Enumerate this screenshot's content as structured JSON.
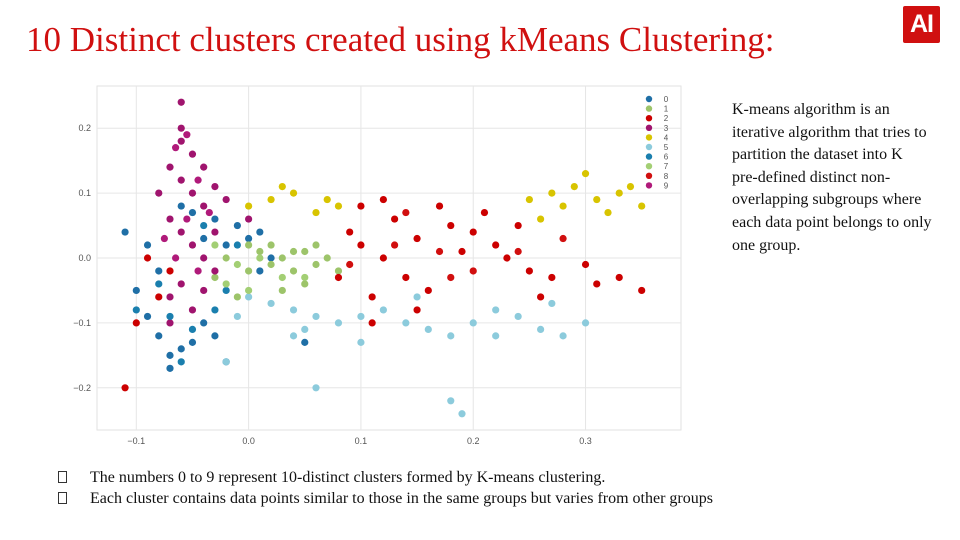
{
  "slide": {
    "title": "10 Distinct clusters created using kMeans Clustering:",
    "logo_text": "AI",
    "logo_color": "#d01010",
    "side_text": "K-means algorithm is an iterative algorithm that tries to partition the dataset into K pre-defined distinct non-overlapping subgroups where each data point belongs to only one group.",
    "bullets": [
      "The numbers 0 to 9 represent 10-distinct clusters formed by K-means clustering.",
      "Each cluster contains data points similar to those in the same groups but varies from other groups"
    ]
  },
  "chart_data": {
    "type": "scatter",
    "xlim": [
      -0.135,
      0.385
    ],
    "ylim": [
      -0.265,
      0.265
    ],
    "x_ticks": [
      -0.1,
      0.0,
      0.1,
      0.2,
      0.3
    ],
    "x_tick_labels": [
      "−0.1",
      "0.0",
      "0.1",
      "0.2",
      "0.3"
    ],
    "y_ticks": [
      -0.2,
      -0.1,
      0.0,
      0.1,
      0.2
    ],
    "y_tick_labels": [
      "−0.2",
      "−0.1",
      "0.0",
      "0.1",
      "0.2"
    ],
    "grid": true,
    "legend_position": "top-right",
    "series": [
      {
        "name": "0",
        "color": "#1f6fa6",
        "points": [
          [
            -0.1,
            -0.05
          ],
          [
            -0.09,
            -0.09
          ],
          [
            -0.08,
            -0.12
          ],
          [
            -0.07,
            -0.15
          ],
          [
            -0.06,
            -0.14
          ],
          [
            -0.05,
            -0.13
          ],
          [
            -0.04,
            -0.1
          ],
          [
            -0.03,
            -0.12
          ],
          [
            -0.09,
            0.02
          ],
          [
            -0.08,
            -0.02
          ],
          [
            -0.05,
            0.07
          ],
          [
            -0.03,
            0.06
          ],
          [
            -0.02,
            0.02
          ],
          [
            -0.01,
            0.05
          ],
          [
            0.0,
            0.03
          ],
          [
            0.01,
            0.04
          ],
          [
            -0.11,
            0.04
          ],
          [
            -0.07,
            -0.17
          ],
          [
            -0.02,
            -0.16
          ],
          [
            0.01,
            -0.02
          ],
          [
            0.05,
            -0.13
          ],
          [
            -0.06,
            0.08
          ],
          [
            -0.04,
            0.03
          ],
          [
            0.02,
            0.0
          ]
        ]
      },
      {
        "name": "1",
        "color": "#9dc46a",
        "points": [
          [
            -0.02,
            0.0
          ],
          [
            0.0,
            -0.02
          ],
          [
            0.01,
            0.01
          ],
          [
            0.02,
            -0.01
          ],
          [
            0.03,
            0.0
          ],
          [
            0.04,
            -0.02
          ],
          [
            0.05,
            0.01
          ],
          [
            0.06,
            -0.01
          ],
          [
            -0.03,
            -0.03
          ],
          [
            0.0,
            0.02
          ],
          [
            0.02,
            0.02
          ],
          [
            0.04,
            0.01
          ],
          [
            0.05,
            -0.04
          ],
          [
            0.07,
            0.0
          ],
          [
            0.03,
            -0.05
          ],
          [
            0.06,
            0.02
          ],
          [
            -0.01,
            -0.06
          ],
          [
            0.08,
            -0.02
          ]
        ]
      },
      {
        "name": "2",
        "color": "#cc0000",
        "points": [
          [
            0.1,
            0.02
          ],
          [
            0.12,
            0.0
          ],
          [
            0.15,
            0.03
          ],
          [
            0.18,
            0.05
          ],
          [
            0.2,
            0.04
          ],
          [
            0.22,
            0.02
          ],
          [
            0.14,
            -0.03
          ],
          [
            0.16,
            -0.05
          ],
          [
            0.11,
            -0.06
          ],
          [
            0.13,
            0.06
          ],
          [
            0.17,
            0.08
          ],
          [
            0.19,
            0.01
          ],
          [
            0.21,
            0.07
          ],
          [
            0.23,
            0.0
          ],
          [
            0.25,
            -0.02
          ],
          [
            0.27,
            -0.03
          ],
          [
            0.3,
            -0.01
          ],
          [
            0.33,
            -0.03
          ],
          [
            0.09,
            0.04
          ],
          [
            0.08,
            -0.03
          ],
          [
            0.1,
            0.08
          ],
          [
            0.12,
            0.09
          ],
          [
            0.24,
            0.05
          ],
          [
            0.26,
            -0.06
          ],
          [
            0.31,
            -0.04
          ],
          [
            0.35,
            -0.05
          ],
          [
            0.11,
            -0.1
          ],
          [
            0.15,
            -0.08
          ],
          [
            -0.11,
            -0.2
          ],
          [
            -0.1,
            -0.1
          ],
          [
            -0.07,
            -0.02
          ],
          [
            -0.09,
            0.0
          ],
          [
            -0.08,
            -0.06
          ]
        ]
      },
      {
        "name": "3",
        "color": "#a0146e",
        "points": [
          [
            -0.06,
            0.18
          ],
          [
            -0.05,
            0.16
          ],
          [
            -0.07,
            0.14
          ],
          [
            -0.06,
            0.12
          ],
          [
            -0.05,
            0.1
          ],
          [
            -0.04,
            0.08
          ],
          [
            -0.07,
            0.06
          ],
          [
            -0.06,
            0.04
          ],
          [
            -0.05,
            0.02
          ],
          [
            -0.04,
            0.0
          ],
          [
            -0.03,
            -0.02
          ],
          [
            -0.06,
            -0.04
          ],
          [
            -0.07,
            -0.06
          ],
          [
            -0.05,
            -0.08
          ],
          [
            -0.06,
            0.2
          ],
          [
            -0.04,
            0.14
          ],
          [
            -0.03,
            0.11
          ],
          [
            -0.02,
            0.09
          ],
          [
            -0.08,
            0.1
          ],
          [
            -0.04,
            -0.05
          ],
          [
            -0.06,
            0.24
          ],
          [
            -0.03,
            0.04
          ],
          [
            0.0,
            0.06
          ],
          [
            -0.07,
            -0.1
          ]
        ]
      },
      {
        "name": "4",
        "color": "#d8c400",
        "points": [
          [
            0.0,
            0.08
          ],
          [
            0.02,
            0.09
          ],
          [
            0.04,
            0.1
          ],
          [
            0.06,
            0.07
          ],
          [
            0.08,
            0.08
          ],
          [
            0.25,
            0.09
          ],
          [
            0.27,
            0.1
          ],
          [
            0.29,
            0.11
          ],
          [
            0.31,
            0.09
          ],
          [
            0.33,
            0.1
          ],
          [
            0.35,
            0.08
          ],
          [
            0.26,
            0.06
          ],
          [
            0.3,
            0.13
          ],
          [
            0.32,
            0.07
          ],
          [
            0.34,
            0.11
          ],
          [
            0.28,
            0.08
          ],
          [
            0.03,
            0.11
          ],
          [
            0.07,
            0.09
          ]
        ]
      },
      {
        "name": "5",
        "color": "#8ccbdc",
        "points": [
          [
            0.0,
            -0.06
          ],
          [
            0.02,
            -0.07
          ],
          [
            0.04,
            -0.08
          ],
          [
            0.06,
            -0.09
          ],
          [
            0.08,
            -0.1
          ],
          [
            0.1,
            -0.09
          ],
          [
            0.12,
            -0.08
          ],
          [
            0.14,
            -0.1
          ],
          [
            0.16,
            -0.11
          ],
          [
            0.18,
            -0.12
          ],
          [
            0.2,
            -0.1
          ],
          [
            0.22,
            -0.08
          ],
          [
            0.24,
            -0.09
          ],
          [
            0.26,
            -0.11
          ],
          [
            0.28,
            -0.12
          ],
          [
            0.3,
            -0.1
          ],
          [
            0.19,
            -0.24
          ],
          [
            0.18,
            -0.22
          ],
          [
            0.06,
            -0.2
          ],
          [
            -0.02,
            -0.16
          ],
          [
            0.04,
            -0.12
          ],
          [
            0.1,
            -0.13
          ],
          [
            0.15,
            -0.06
          ],
          [
            0.22,
            -0.12
          ],
          [
            -0.01,
            -0.09
          ],
          [
            0.05,
            -0.11
          ],
          [
            0.27,
            -0.07
          ]
        ]
      },
      {
        "name": "6",
        "color": "#1a7fae",
        "points": [
          [
            -0.1,
            -0.08
          ],
          [
            -0.08,
            -0.04
          ],
          [
            -0.07,
            -0.09
          ],
          [
            -0.05,
            -0.11
          ],
          [
            -0.03,
            -0.08
          ],
          [
            -0.02,
            -0.05
          ],
          [
            -0.01,
            0.02
          ],
          [
            -0.04,
            0.05
          ],
          [
            -0.06,
            -0.16
          ]
        ]
      },
      {
        "name": "7",
        "color": "#a3cf74",
        "points": [
          [
            -0.03,
            0.02
          ],
          [
            -0.01,
            -0.01
          ],
          [
            0.01,
            0.0
          ],
          [
            0.03,
            -0.03
          ],
          [
            0.05,
            -0.03
          ],
          [
            -0.02,
            -0.04
          ],
          [
            0.0,
            -0.05
          ]
        ]
      },
      {
        "name": "8",
        "color": "#d10f0f",
        "points": [
          [
            0.13,
            0.02
          ],
          [
            0.17,
            0.01
          ],
          [
            0.2,
            -0.02
          ],
          [
            0.24,
            0.01
          ],
          [
            0.28,
            0.03
          ],
          [
            0.14,
            0.07
          ],
          [
            0.18,
            -0.03
          ],
          [
            0.09,
            -0.01
          ]
        ]
      },
      {
        "name": "9",
        "color": "#b01a7a",
        "points": [
          [
            -0.065,
            0.17
          ],
          [
            -0.055,
            0.19
          ],
          [
            -0.045,
            0.12
          ],
          [
            -0.055,
            0.06
          ],
          [
            -0.065,
            0.0
          ],
          [
            -0.045,
            -0.02
          ],
          [
            -0.035,
            0.07
          ],
          [
            -0.075,
            0.03
          ]
        ]
      }
    ]
  }
}
